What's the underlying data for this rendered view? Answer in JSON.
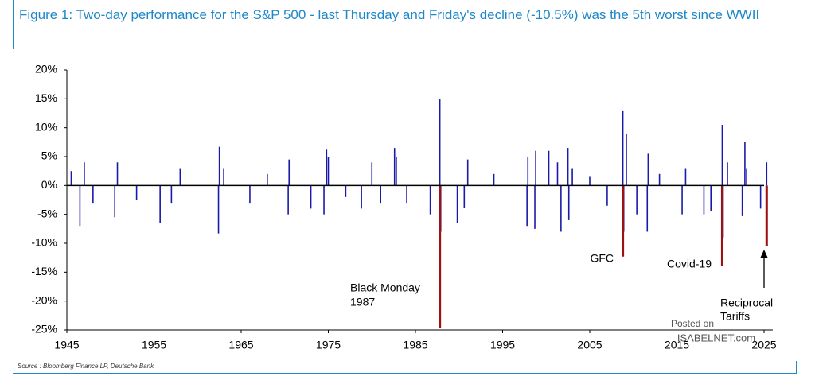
{
  "chart_data": {
    "type": "bar",
    "title": "Figure 1: Two-day performance for the S&P 500 - last Thursday and Friday's decline (-10.5%) was the 5th worst since WWII",
    "source": "Source : Bloomberg Finance LP, Deutsche Bank",
    "xlim": [
      1945,
      2026
    ],
    "xticks": [
      1945,
      1955,
      1965,
      1975,
      1985,
      1995,
      2005,
      2015,
      2025
    ],
    "ylim": [
      -25,
      20
    ],
    "yticks": [
      {
        "value": 20,
        "label": "20%"
      },
      {
        "value": 15,
        "label": "15%"
      },
      {
        "value": 10,
        "label": "10%"
      },
      {
        "value": 5,
        "label": "5%"
      },
      {
        "value": 0,
        "label": "0%"
      },
      {
        "value": -5,
        "label": "-5%"
      },
      {
        "value": -10,
        "label": "-10%"
      },
      {
        "value": -15,
        "label": "-15%"
      },
      {
        "value": -20,
        "label": "-20%"
      },
      {
        "value": -25,
        "label": "-25%"
      }
    ],
    "series": [
      {
        "color": "#1a1aa8",
        "x": [
          1945.5,
          1946.5,
          1947,
          1948,
          1950.5,
          1950.8,
          1953,
          1955.7,
          1957,
          1958,
          1962.4,
          1962.5,
          1963,
          1966,
          1968,
          1970.4,
          1970.5,
          1973,
          1974.5,
          1974.8,
          1975,
          1977,
          1978.8,
          1980,
          1981,
          1982.6,
          1982.8,
          1984,
          1986.7,
          1987.8,
          1987.9,
          1989.8,
          1990.6,
          1991,
          1994,
          1997.8,
          1997.9,
          1998.7,
          1998.8,
          2000.3,
          2001.3,
          2001.7,
          2002.5,
          2002.6,
          2003,
          2005,
          2007,
          2008.8,
          2008.9,
          2009.2,
          2010.4,
          2011.6,
          2011.7,
          2013,
          2015.6,
          2016,
          2018.1,
          2018.9,
          2020.2,
          2020.3,
          2020.8,
          2022.5,
          2022.8,
          2023,
          2024.6,
          2025.3
        ],
        "values": [
          2.5,
          -7,
          4,
          -3,
          -5.5,
          4,
          -2.5,
          -6.5,
          -3,
          3,
          -8.3,
          6.7,
          3,
          -3,
          2,
          -5,
          4.5,
          -4,
          -5,
          6.2,
          5,
          -2,
          -4,
          4,
          -3,
          6.5,
          5,
          -3,
          -5,
          14.9,
          -8,
          -6.5,
          -3.8,
          4.5,
          2,
          -7,
          5,
          -7.5,
          6,
          6,
          4,
          -8,
          6.5,
          -6,
          3,
          1.5,
          -3.5,
          13,
          -8,
          9,
          -5,
          -8,
          5.5,
          2,
          -5,
          3,
          -5,
          -4.5,
          10.5,
          -9,
          4,
          -5.3,
          7.5,
          3,
          -4,
          4
        ]
      },
      {
        "color": "#a01010",
        "x": [
          1987.8,
          2008.8,
          2020.2,
          2025.3
        ],
        "values": [
          -24.6,
          -12.3,
          -13.9,
          -10.5
        ]
      }
    ],
    "annotations": [
      "Black Monday",
      "1987",
      "GFC",
      "Covid-19",
      "Reciprocal",
      "Tariffs"
    ],
    "watermark": [
      "Posted on",
      "ISABELNET.com"
    ]
  }
}
